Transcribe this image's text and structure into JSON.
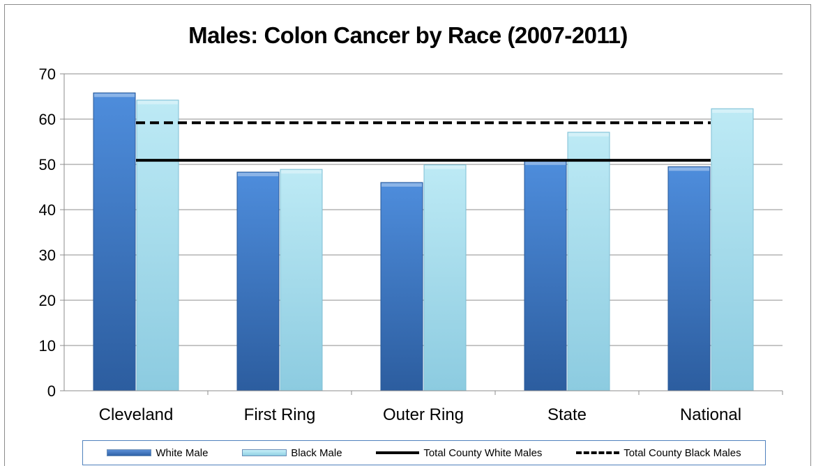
{
  "chart_data": {
    "type": "bar",
    "title": "Males: Colon Cancer by Race (2007-2011)",
    "categories": [
      "Cleveland",
      "First Ring",
      "Outer Ring",
      "State",
      "National"
    ],
    "series": [
      {
        "name": "White Male",
        "values": [
          65.8,
          48.3,
          46.0,
          50.8,
          49.5
        ],
        "color": "#3a75c4"
      },
      {
        "name": "Black Male",
        "values": [
          64.2,
          48.9,
          49.9,
          57.1,
          62.3
        ],
        "color": "#a8dfee"
      }
    ],
    "reference_lines": [
      {
        "name": "Total County White Males",
        "value": 50.9,
        "style": "solid"
      },
      {
        "name": "Total County Black Males",
        "value": 59.2,
        "style": "dashed"
      }
    ],
    "yticks": [
      "0",
      "10",
      "20",
      "30",
      "40",
      "50",
      "60",
      "70"
    ],
    "ylim": [
      0,
      70
    ],
    "grid": true,
    "legend_position": "bottom"
  }
}
